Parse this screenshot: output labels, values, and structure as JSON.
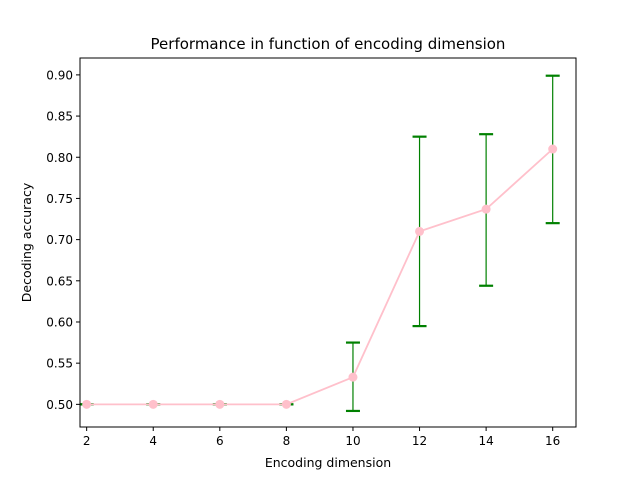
{
  "chart_data": {
    "type": "line",
    "title": "Performance in function of encoding dimension",
    "xlabel": "Encoding dimension",
    "ylabel": "Decoding accuracy",
    "xlim": [
      1.8,
      16.7
    ],
    "ylim": [
      0.4725,
      0.9205
    ],
    "x_ticks": [
      2,
      4,
      6,
      8,
      10,
      12,
      14,
      16
    ],
    "x_tick_labels": [
      "2",
      "4",
      "6",
      "8",
      "10",
      "12",
      "14",
      "16"
    ],
    "y_ticks": [
      0.5,
      0.55,
      0.6,
      0.65,
      0.7,
      0.75,
      0.8,
      0.85,
      0.9
    ],
    "y_tick_labels": [
      "0.50",
      "0.55",
      "0.60",
      "0.65",
      "0.70",
      "0.75",
      "0.80",
      "0.85",
      "0.90"
    ],
    "grid": false,
    "legend": "none",
    "series": [
      {
        "x": [
          2,
          4,
          6,
          8,
          10,
          12,
          14,
          16
        ],
        "y": [
          0.5,
          0.5,
          0.5,
          0.5,
          0.533,
          0.71,
          0.737,
          0.81
        ],
        "err_low": [
          0.5,
          0.5,
          0.5,
          0.5,
          0.492,
          0.595,
          0.644,
          0.72
        ],
        "err_high": [
          0.5,
          0.5,
          0.5,
          0.5,
          0.575,
          0.825,
          0.828,
          0.899
        ],
        "line_color": "#ffc0cb",
        "marker_color": "#ffc0cb",
        "error_color": "#008000"
      }
    ]
  }
}
